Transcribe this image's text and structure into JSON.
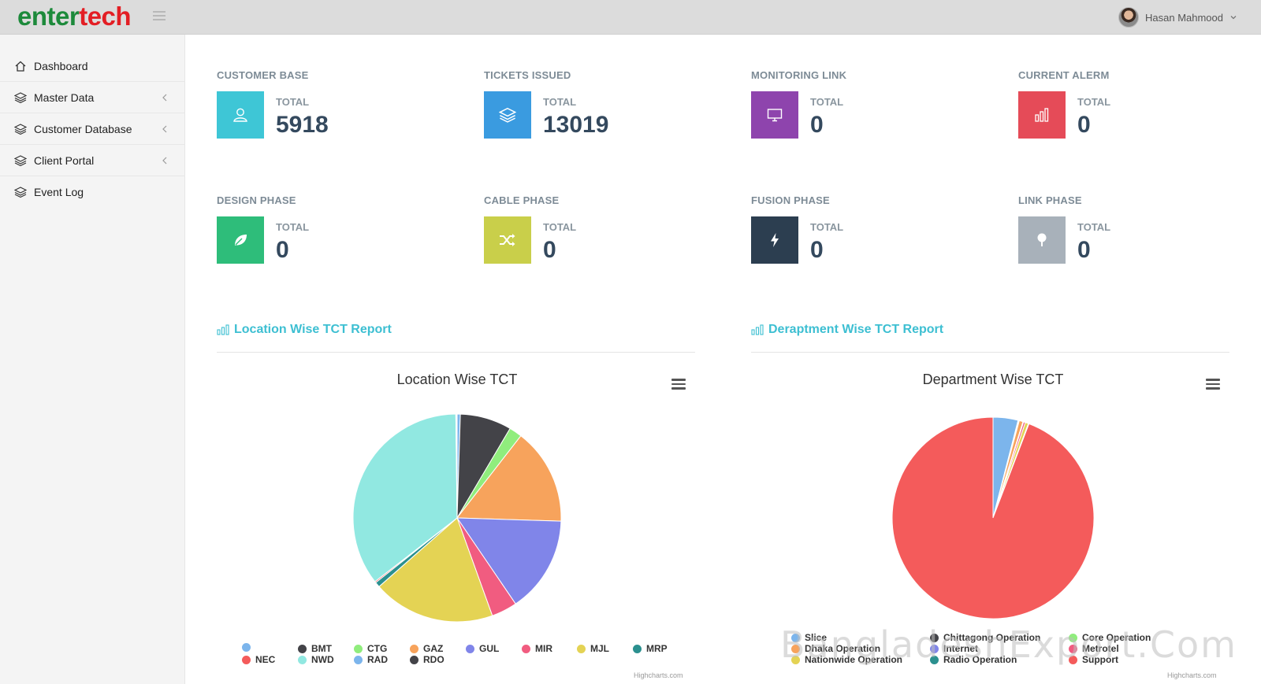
{
  "brand": {
    "logo_part1": "enter",
    "logo_part2": "tech"
  },
  "user": {
    "name": "Hasan Mahmood"
  },
  "sidebar": {
    "items": [
      {
        "label": "Dashboard",
        "icon": "home-icon",
        "has_submenu": false
      },
      {
        "label": "Master Data",
        "icon": "layers-icon",
        "has_submenu": true
      },
      {
        "label": "Customer Database",
        "icon": "layers-icon",
        "has_submenu": true
      },
      {
        "label": "Client Portal",
        "icon": "layers-icon",
        "has_submenu": true
      },
      {
        "label": "Event Log",
        "icon": "layers-icon",
        "has_submenu": false
      }
    ]
  },
  "stats": [
    {
      "title": "CUSTOMER BASE",
      "label": "TOTAL",
      "value": "5918",
      "color": "#3ec6d6",
      "icon": "user-icon"
    },
    {
      "title": "TICKETS ISSUED",
      "label": "TOTAL",
      "value": "13019",
      "color": "#3a9be0",
      "icon": "layers-icon"
    },
    {
      "title": "MONITORING LINK",
      "label": "TOTAL",
      "value": "0",
      "color": "#8e44ad",
      "icon": "monitor-icon"
    },
    {
      "title": "CURRENT ALERM",
      "label": "TOTAL",
      "value": "0",
      "color": "#e54b58",
      "icon": "bar-chart-icon"
    },
    {
      "title": "DESIGN PHASE",
      "label": "TOTAL",
      "value": "0",
      "color": "#2ebd7a",
      "icon": "leaf-icon"
    },
    {
      "title": "CABLE PHASE",
      "label": "TOTAL",
      "value": "0",
      "color": "#c9cf4a",
      "icon": "shuffle-icon"
    },
    {
      "title": "FUSION PHASE",
      "label": "TOTAL",
      "value": "0",
      "color": "#2c3e50",
      "icon": "bolt-icon"
    },
    {
      "title": "LINK PHASE",
      "label": "TOTAL",
      "value": "0",
      "color": "#a8b1ba",
      "icon": "tree-icon"
    }
  ],
  "sections": {
    "location_title": "Location Wise TCT Report",
    "department_title": "Deraptment Wise TCT Report"
  },
  "credit": "Highcharts.com",
  "watermark": "BangladeshExport.Com",
  "chart_data": [
    {
      "type": "pie",
      "title": "Location Wise TCT",
      "slices": [
        {
          "name": "",
          "value": 0.5,
          "color": "#7cb5ec"
        },
        {
          "name": "BMT",
          "value": 8,
          "color": "#434348"
        },
        {
          "name": "CTG",
          "value": 2,
          "color": "#90ed7d"
        },
        {
          "name": "GAZ",
          "value": 15,
          "color": "#f7a35c"
        },
        {
          "name": "GUL",
          "value": 15,
          "color": "#8085e9"
        },
        {
          "name": "MIR",
          "value": 4,
          "color": "#f15c80"
        },
        {
          "name": "MJL",
          "value": 19,
          "color": "#e4d354"
        },
        {
          "name": "MRP",
          "value": 0.8,
          "color": "#2b908f"
        },
        {
          "name": "NEC",
          "value": 0.2,
          "color": "#f45b5b"
        },
        {
          "name": "NWD",
          "value": 35.3,
          "color": "#91e8e1"
        },
        {
          "name": "RAD",
          "value": 0.1,
          "color": "#7cb5ec"
        },
        {
          "name": "RDO",
          "value": 0.1,
          "color": "#434348"
        }
      ],
      "legend": [
        "",
        "BMT",
        "CTG",
        "GAZ",
        "GUL",
        "MIR",
        "MJL",
        "MRP",
        "NEC",
        "NWD",
        "RAD",
        "RDO"
      ]
    },
    {
      "type": "pie",
      "title": "Department Wise TCT",
      "slices": [
        {
          "name": "Slice",
          "value": 4,
          "color": "#7cb5ec"
        },
        {
          "name": "Chittagong Operation",
          "value": 0.1,
          "color": "#434348"
        },
        {
          "name": "Core Operation",
          "value": 0.1,
          "color": "#90ed7d"
        },
        {
          "name": "Dhaka Operation",
          "value": 0.6,
          "color": "#f7a35c"
        },
        {
          "name": "Internet",
          "value": 0.1,
          "color": "#8085e9"
        },
        {
          "name": "Metrotel",
          "value": 0.3,
          "color": "#f15c80"
        },
        {
          "name": "Nationwide Operation",
          "value": 0.5,
          "color": "#e4d354"
        },
        {
          "name": "Radio Operation",
          "value": 0.1,
          "color": "#2b908f"
        },
        {
          "name": "Support",
          "value": 94.2,
          "color": "#f45b5b"
        }
      ],
      "legend": [
        "Slice",
        "Chittagong Operation",
        "Core Operation",
        "Dhaka Operation",
        "Internet",
        "Metrotel",
        "Nationwide Operation",
        "Radio Operation",
        "Support"
      ]
    }
  ]
}
